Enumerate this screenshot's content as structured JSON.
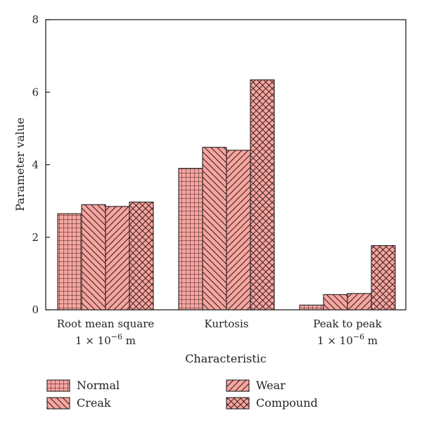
{
  "chart_data": {
    "type": "bar",
    "categories": [
      {
        "line1": "Root mean square",
        "line2_prefix": "1 × 10",
        "line2_sup": "−6",
        "line2_suffix": " m"
      },
      {
        "line1": "Kurtosis",
        "line2_prefix": "",
        "line2_sup": "",
        "line2_suffix": ""
      },
      {
        "line1": "Peak to peak",
        "line2_prefix": "1 × 10",
        "line2_sup": "−6",
        "line2_suffix": " m"
      }
    ],
    "series": [
      {
        "name": "Normal",
        "values": [
          2.65,
          3.9,
          0.13
        ],
        "pattern": "grid"
      },
      {
        "name": "Creak",
        "values": [
          2.9,
          4.48,
          0.42
        ],
        "pattern": "diag-back"
      },
      {
        "name": "Wear",
        "values": [
          2.85,
          4.4,
          0.45
        ],
        "pattern": "diag-fwd"
      },
      {
        "name": "Compound",
        "values": [
          2.97,
          6.34,
          1.77
        ],
        "pattern": "crosshatch"
      }
    ],
    "title": "",
    "xlabel": "Characteristic",
    "ylabel": "Parameter value",
    "ylim": [
      0,
      8
    ],
    "yticks": [
      "0",
      "2",
      "4",
      "6",
      "8"
    ],
    "grid": false,
    "legend_position": "bottom",
    "colors": {
      "fill": "#f7a5a0",
      "hatch": "#3a2020",
      "axis": "#222222"
    }
  }
}
